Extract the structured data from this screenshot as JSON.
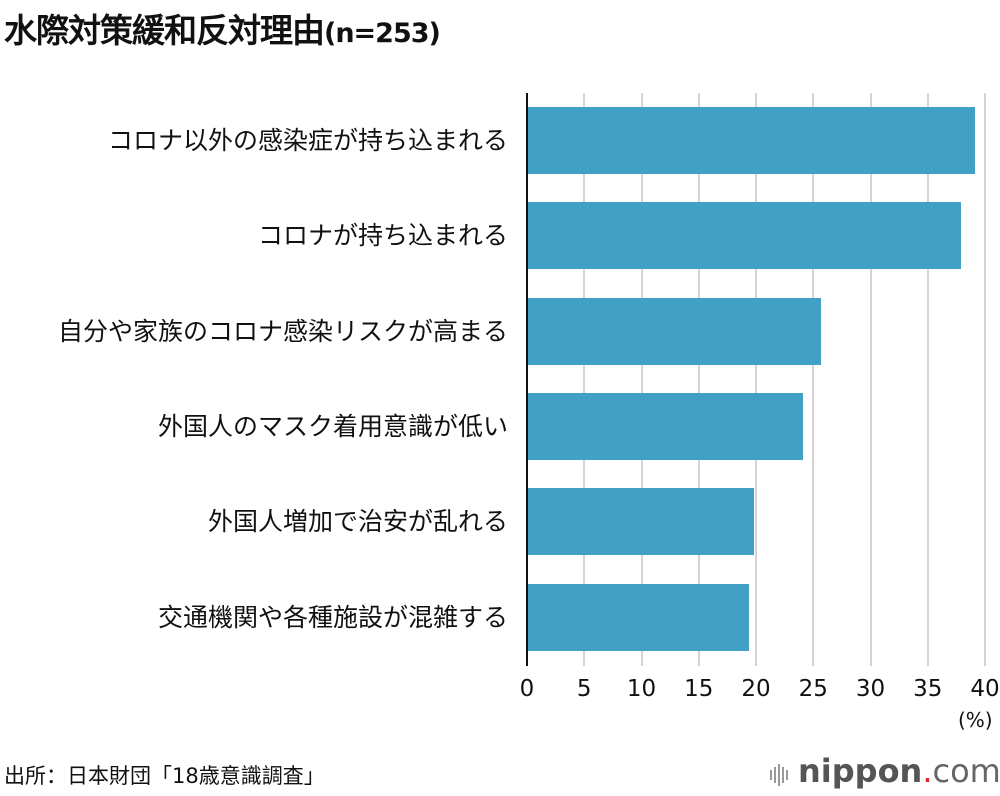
{
  "title": {
    "main": "水際対策緩和反対理由",
    "n": "(n=253)"
  },
  "chart_data": {
    "type": "bar",
    "orientation": "horizontal",
    "title": "水際対策緩和反対理由(n=253)",
    "categories": [
      "コロナ以外の感染症が持ち込まれる",
      "コロナが持ち込まれる",
      "自分や家族のコロナ感染リスクが高まる",
      "外国人のマスク着用意識が低い",
      "外国人増加で治安が乱れる",
      "交通機関や各種施設が混雑する"
    ],
    "values": [
      39.1,
      37.9,
      25.7,
      24.1,
      19.8,
      19.4
    ],
    "xlabel": "(%)",
    "ylabel": "",
    "xlim": [
      0,
      40
    ],
    "xticks": [
      "0",
      "5",
      "10",
      "15",
      "20",
      "25",
      "30",
      "35",
      "40"
    ],
    "grid": true,
    "legend": "none",
    "bar_color": "#41a0c3"
  },
  "axis": {
    "unit": "(%)"
  },
  "source": "出所：日本財団「18歳意識調査」",
  "logo": {
    "name": "nippon",
    "dot": ".",
    "tld": "com"
  }
}
